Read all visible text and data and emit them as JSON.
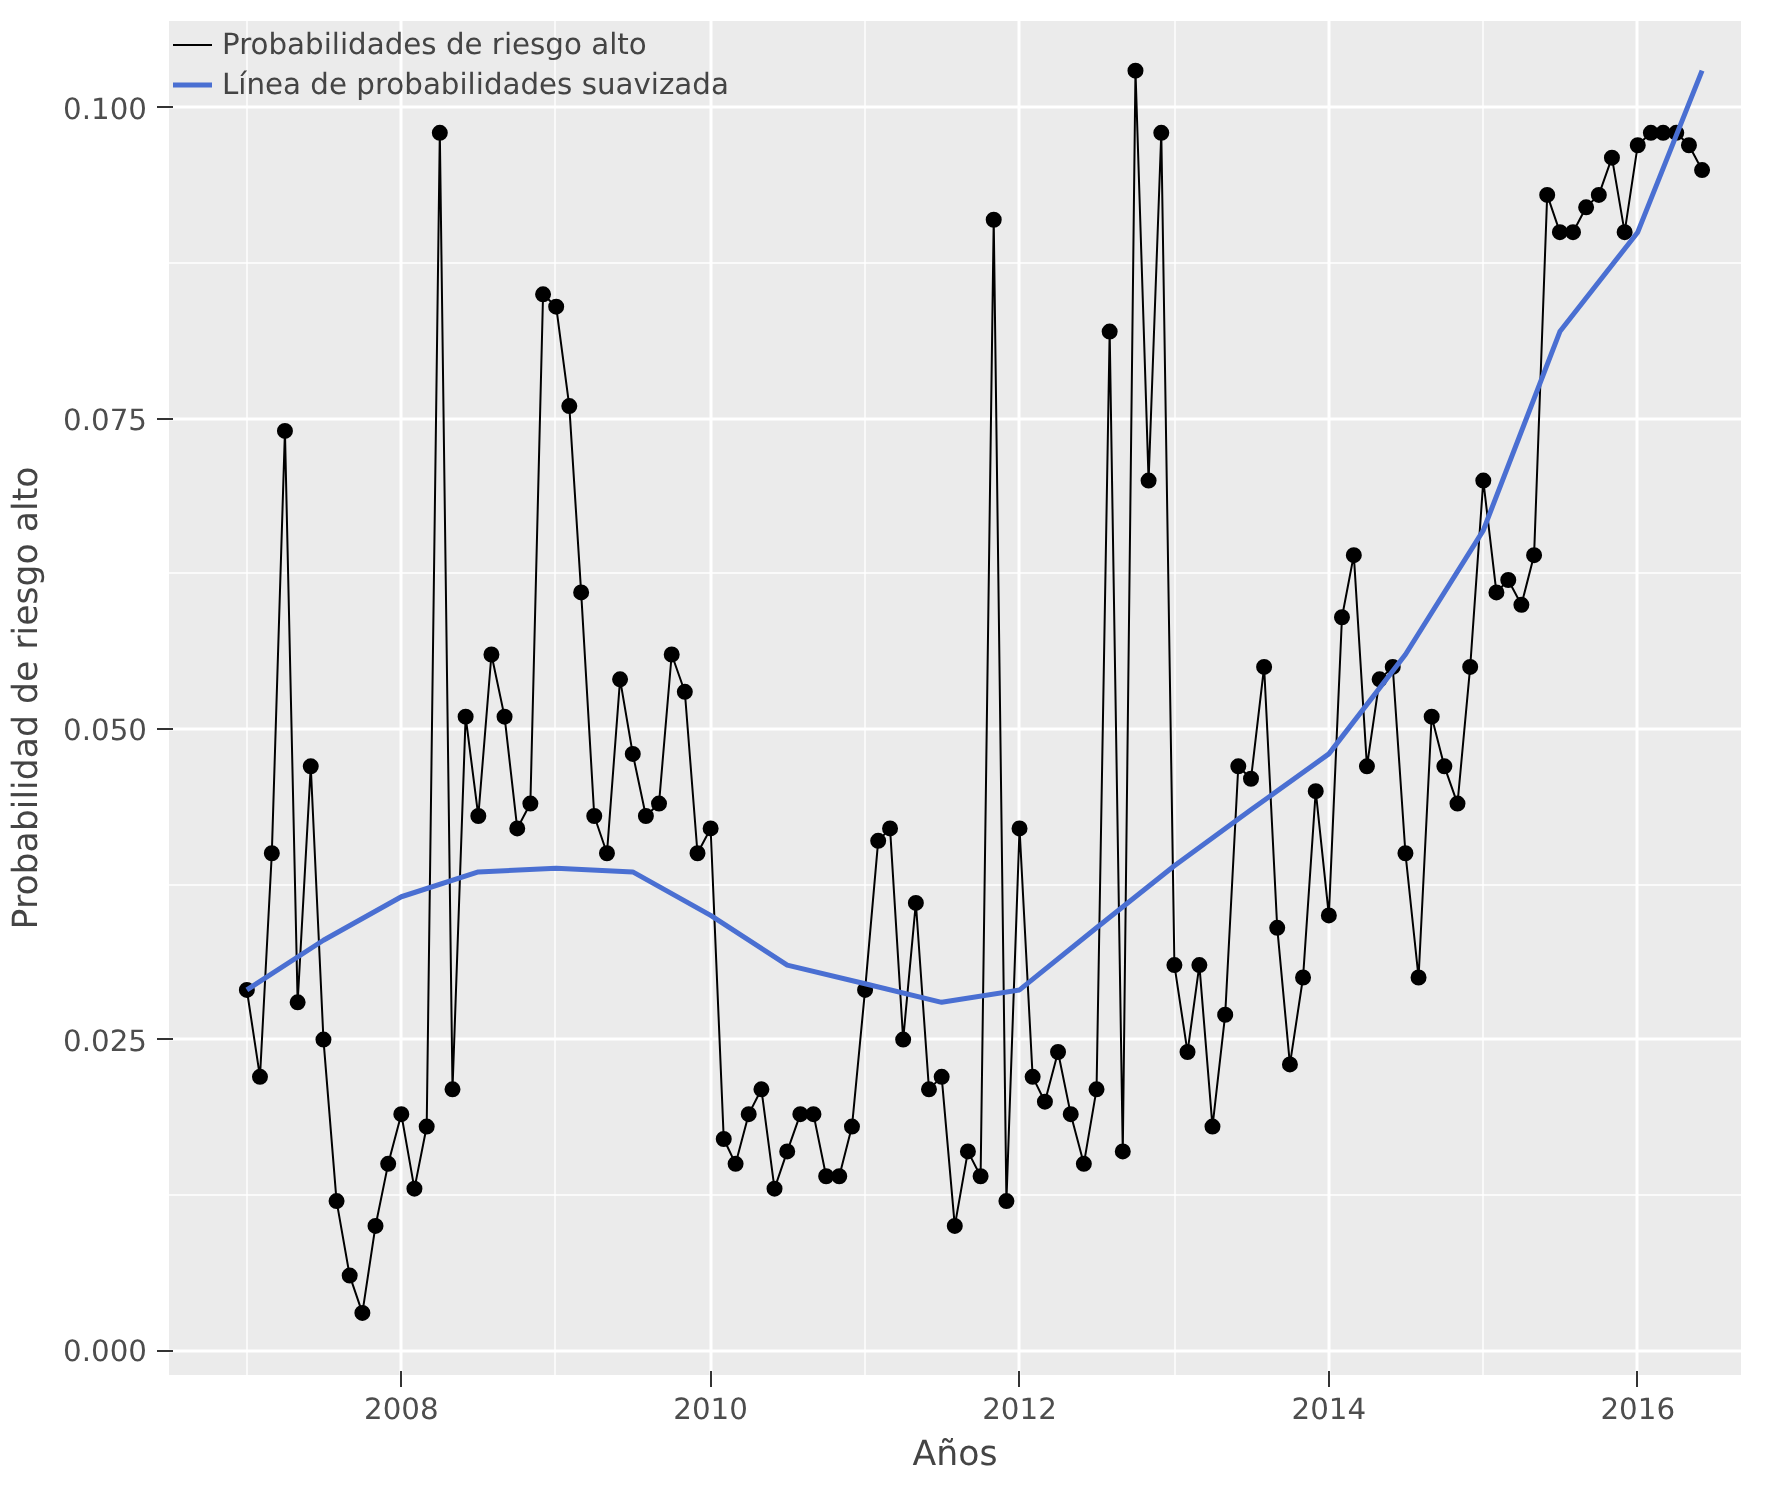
{
  "chart_data": {
    "type": "line",
    "xlabel": "Años",
    "ylabel": "Probabilidad de riesgo alto",
    "x": [
      "2007-01",
      "2007-02",
      "2007-03",
      "2007-04",
      "2007-05",
      "2007-06",
      "2007-07",
      "2007-08",
      "2007-09",
      "2007-10",
      "2007-11",
      "2007-12",
      "2008-01",
      "2008-02",
      "2008-03",
      "2008-04",
      "2008-05",
      "2008-06",
      "2008-07",
      "2008-08",
      "2008-09",
      "2008-10",
      "2008-11",
      "2008-12",
      "2009-01",
      "2009-02",
      "2009-03",
      "2009-04",
      "2009-05",
      "2009-06",
      "2009-07",
      "2009-08",
      "2009-09",
      "2009-10",
      "2009-11",
      "2009-12",
      "2010-01",
      "2010-02",
      "2010-03",
      "2010-04",
      "2010-05",
      "2010-06",
      "2010-07",
      "2010-08",
      "2010-09",
      "2010-10",
      "2010-11",
      "2010-12",
      "2011-01",
      "2011-02",
      "2011-03",
      "2011-04",
      "2011-05",
      "2011-06",
      "2011-07",
      "2011-08",
      "2011-09",
      "2011-10",
      "2011-11",
      "2011-12",
      "2012-01",
      "2012-02",
      "2012-03",
      "2012-04",
      "2012-05",
      "2012-06",
      "2012-07",
      "2012-08",
      "2012-09",
      "2012-10",
      "2012-11",
      "2012-12",
      "2013-01",
      "2013-02",
      "2013-03",
      "2013-04",
      "2013-05",
      "2013-06",
      "2013-07",
      "2013-08",
      "2013-09",
      "2013-10",
      "2013-11",
      "2013-12",
      "2014-01",
      "2014-02",
      "2014-03",
      "2014-04",
      "2014-05",
      "2014-06",
      "2014-07",
      "2014-08",
      "2014-09",
      "2014-10",
      "2014-11",
      "2014-12",
      "2015-01",
      "2015-02",
      "2015-03",
      "2015-04",
      "2015-05",
      "2015-06",
      "2015-07",
      "2015-08",
      "2015-09",
      "2015-10",
      "2015-11",
      "2015-12",
      "2016-01",
      "2016-02",
      "2016-03",
      "2016-04",
      "2016-05",
      "2016-06"
    ],
    "series": [
      {
        "name": "Probabilidades de riesgo alto",
        "color": "#000000",
        "marker": "circle",
        "values": [
          0.029,
          0.022,
          0.04,
          0.074,
          0.028,
          0.047,
          0.025,
          0.012,
          0.006,
          0.003,
          0.01,
          0.015,
          0.019,
          0.013,
          0.018,
          0.098,
          0.021,
          0.051,
          0.043,
          0.056,
          0.051,
          0.042,
          0.044,
          0.085,
          0.084,
          0.076,
          0.061,
          0.043,
          0.04,
          0.054,
          0.048,
          0.043,
          0.044,
          0.056,
          0.053,
          0.04,
          0.042,
          0.017,
          0.015,
          0.019,
          0.021,
          0.013,
          0.016,
          0.019,
          0.019,
          0.014,
          0.014,
          0.018,
          0.029,
          0.041,
          0.042,
          0.025,
          0.036,
          0.021,
          0.022,
          0.01,
          0.016,
          0.014,
          0.091,
          0.012,
          0.042,
          0.022,
          0.02,
          0.024,
          0.019,
          0.015,
          0.021,
          0.082,
          0.016,
          0.103,
          0.07,
          0.098,
          0.031,
          0.024,
          0.031,
          0.018,
          0.027,
          0.047,
          0.046,
          0.055,
          0.034,
          0.023,
          0.03,
          0.045,
          0.035,
          0.059,
          0.064,
          0.047,
          0.054,
          0.055,
          0.04,
          0.03,
          0.051,
          0.047,
          0.044,
          0.055,
          0.07,
          0.061,
          0.062,
          0.06,
          0.064,
          0.093,
          0.09,
          0.09,
          0.092,
          0.093,
          0.096,
          0.09,
          0.097,
          0.098,
          0.098,
          0.098,
          0.097,
          0.095
        ]
      },
      {
        "name": "Línea de probabilidades suavizada",
        "color": "#4a6fd2",
        "x": [
          "2007-01",
          "2007-07",
          "2008-01",
          "2008-07",
          "2009-01",
          "2009-07",
          "2010-01",
          "2010-07",
          "2011-01",
          "2011-07",
          "2012-01",
          "2012-07",
          "2013-01",
          "2013-07",
          "2014-01",
          "2014-07",
          "2015-01",
          "2015-07",
          "2016-01",
          "2016-06"
        ],
        "values": [
          0.029,
          0.033,
          0.0365,
          0.0385,
          0.0388,
          0.0385,
          0.035,
          0.031,
          0.0295,
          0.028,
          0.029,
          0.034,
          0.039,
          0.0435,
          0.048,
          0.056,
          0.066,
          0.082,
          0.09,
          0.103
        ]
      }
    ],
    "xlim": [
      "2006-07",
      "2016-09"
    ],
    "xticks": [
      "2008",
      "2010",
      "2012",
      "2014",
      "2016"
    ],
    "ylim": [
      -0.002,
      0.107
    ],
    "yticks": [
      {
        "value": 0,
        "label": "0.000"
      },
      {
        "value": 0.025,
        "label": "0.025"
      },
      {
        "value": 0.05,
        "label": "0.050"
      },
      {
        "value": 0.075,
        "label": "0.075"
      },
      {
        "value": 0.1,
        "label": "0.100"
      }
    ],
    "grid": true,
    "legend": "top left"
  }
}
